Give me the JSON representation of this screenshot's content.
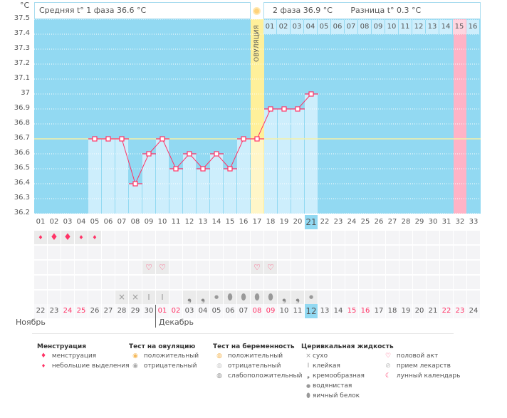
{
  "unit": "°C",
  "header": {
    "phase1": "Средняя t° 1 фаза 36.6 °C",
    "phase2": "2 фаза 36.9 °C",
    "diff": "Разница t° 0.3 °C",
    "ovulation": "ОВУЛЯЦИЯ"
  },
  "chart_data": {
    "type": "line",
    "ylabel": "°C",
    "ylim": [
      36.2,
      37.5
    ],
    "yticks": [
      "37.5",
      "37.4",
      "37.3",
      "37.2",
      "37.1",
      "37",
      "36.9",
      "36.8",
      "36.7",
      "36.6",
      "36.5",
      "36.4",
      "36.3",
      "36.2"
    ],
    "cycle_days": [
      "01",
      "02",
      "03",
      "04",
      "05",
      "06",
      "07",
      "08",
      "09",
      "10",
      "11",
      "12",
      "13",
      "14",
      "15",
      "16",
      "17",
      "18",
      "19",
      "20",
      "21",
      "22",
      "23",
      "24",
      "25",
      "26",
      "27",
      "28",
      "29",
      "30",
      "31",
      "32",
      "33"
    ],
    "temps": [
      null,
      null,
      null,
      null,
      36.7,
      36.7,
      36.7,
      36.4,
      36.6,
      36.7,
      36.5,
      36.6,
      36.5,
      36.6,
      36.5,
      36.7,
      36.7,
      36.9,
      36.9,
      36.9,
      37.0
    ],
    "coverline": 36.7,
    "ovulation_day": 17,
    "current_day": 21,
    "expected_period_day": 32
  },
  "next_cycle": [
    "01",
    "02",
    "03",
    "04",
    "05",
    "06",
    "07",
    "08",
    "09",
    "10",
    "11",
    "12",
    "13",
    "14",
    "15",
    "16"
  ],
  "next_cycle_highlight": "15",
  "dates": [
    "22",
    "23",
    "24",
    "25",
    "26",
    "27",
    "28",
    "29",
    "30",
    "01",
    "02",
    "03",
    "04",
    "05",
    "06",
    "07",
    "08",
    "09",
    "10",
    "11",
    "12",
    "13",
    "14",
    "15",
    "16",
    "17",
    "18",
    "19",
    "20",
    "21",
    "22",
    "23",
    "24"
  ],
  "red_dates": [
    2,
    3,
    9,
    10,
    16,
    17,
    23,
    24,
    30,
    31
  ],
  "today_index": 20,
  "months": {
    "nov": "Ноябрь",
    "dec": "Декабрь"
  },
  "markers": {
    "menstruation": [
      "s",
      "b",
      "b",
      "s",
      "s"
    ],
    "sex_days": [
      9,
      10,
      17,
      18
    ],
    "cervical": {
      "7": "dry",
      "8": "dry",
      "9": "sticky",
      "10": "sticky",
      "12": "creamy",
      "13": "creamy",
      "14": "watery",
      "15": "egg",
      "16": "egg",
      "17": "egg",
      "18": "egg",
      "19": "creamy",
      "20": "creamy",
      "21": "watery"
    }
  },
  "colors": {
    "plot": "#92d9f2",
    "bar": "#cdeefc",
    "line": "#ff3366",
    "ovulation": "#fff09a",
    "period": "#ffb3c6",
    "today": "#92d9f2"
  },
  "legend": {
    "menstruation": {
      "title": "Менструация",
      "items": [
        "менструация",
        "небольшие выделения"
      ]
    },
    "ovtest": {
      "title": "Тест на овуляцию",
      "items": [
        "положительный",
        "отрицательный"
      ]
    },
    "pregtest": {
      "title": "Тест на беременность",
      "items": [
        "положительный",
        "отрицательный",
        "слабоположительный"
      ]
    },
    "cervical": {
      "title": "Церивкальная жидкость",
      "items": [
        "сухо",
        "клейкая",
        "кремообразная",
        "водянистая",
        "яичный белок"
      ]
    },
    "other": {
      "items": [
        "половой акт",
        "прием лекарств",
        "лунный календарь"
      ]
    }
  }
}
